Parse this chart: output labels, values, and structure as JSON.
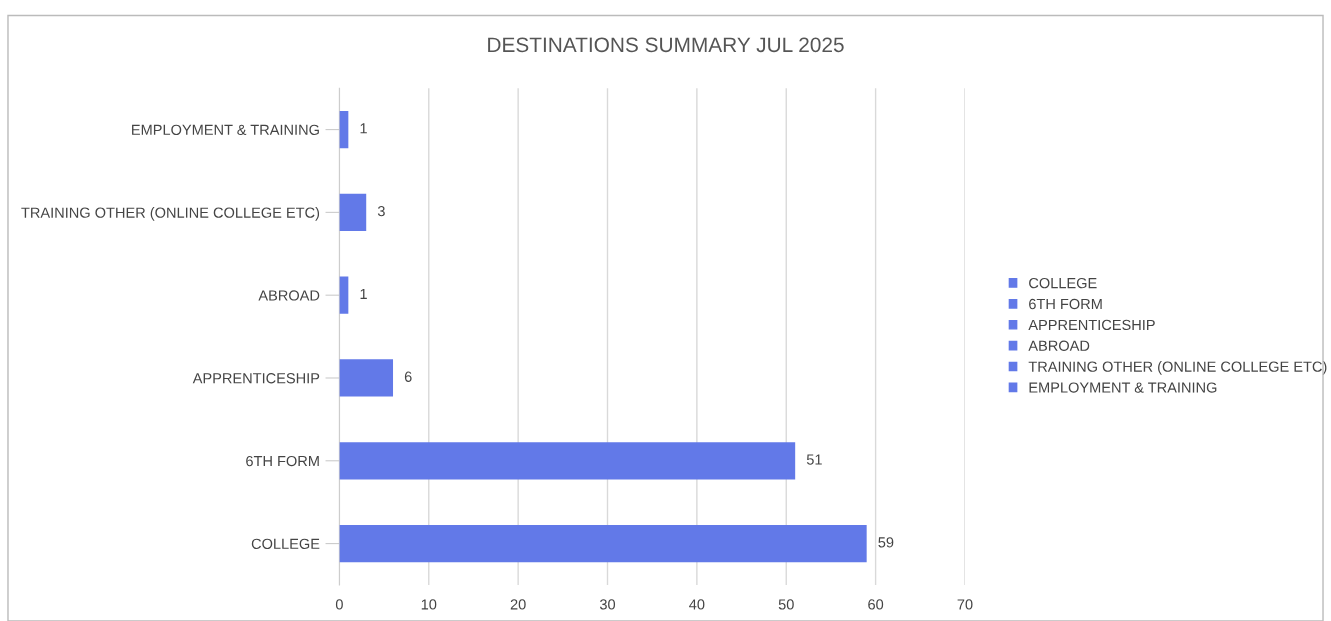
{
  "chart_data": {
    "type": "bar",
    "orientation": "horizontal",
    "title": "DESTINATIONS SUMMARY JUL 2025",
    "categories": [
      "EMPLOYMENT & TRAINING",
      "TRAINING OTHER (ONLINE COLLEGE ETC)",
      "ABROAD",
      "APPRENTICESHIP",
      "6TH FORM",
      "COLLEGE"
    ],
    "series": [
      {
        "name": "COLLEGE",
        "color": "#6279e8",
        "values": [
          null,
          null,
          null,
          null,
          null,
          59
        ]
      },
      {
        "name": "6TH FORM",
        "color": "#6279e8",
        "values": [
          null,
          null,
          null,
          null,
          51,
          null
        ]
      },
      {
        "name": "APPRENTICESHIP",
        "color": "#6279e8",
        "values": [
          null,
          null,
          null,
          6,
          null,
          null
        ]
      },
      {
        "name": "ABROAD",
        "color": "#6279e8",
        "values": [
          null,
          null,
          1,
          null,
          null,
          null
        ]
      },
      {
        "name": "TRAINING OTHER (ONLINE COLLEGE ETC)",
        "color": "#6279e8",
        "values": [
          null,
          3,
          null,
          null,
          null,
          null
        ]
      },
      {
        "name": "EMPLOYMENT & TRAINING",
        "color": "#6279e8",
        "values": [
          1,
          null,
          null,
          null,
          null,
          null
        ]
      }
    ],
    "xlim": [
      0,
      70
    ],
    "xticks": [
      0,
      10,
      20,
      30,
      40,
      50,
      60,
      70
    ],
    "grid": "x",
    "legend": "right",
    "data_labels": true
  }
}
